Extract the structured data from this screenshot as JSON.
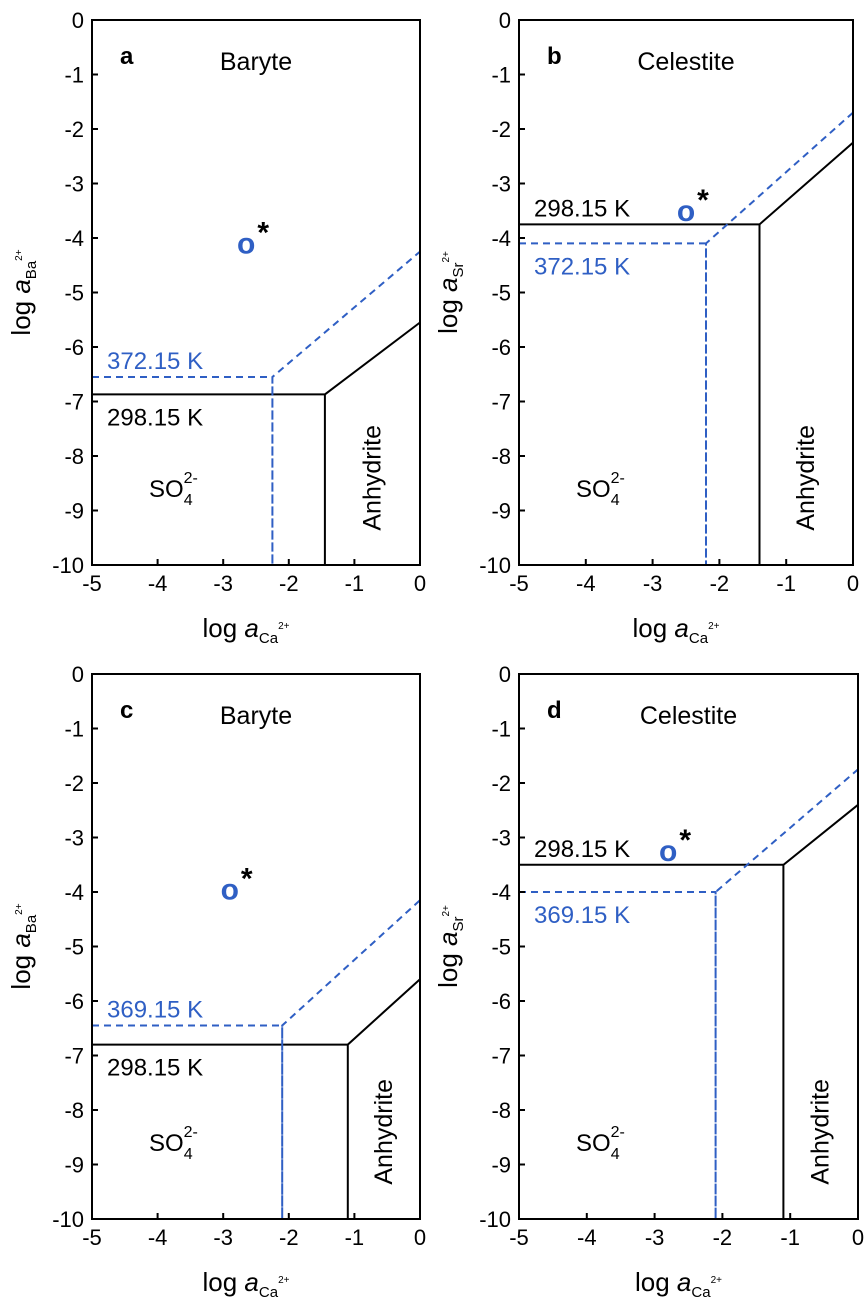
{
  "figure": {
    "colors": {
      "axis": "#000000",
      "low_temp_line": "#000000",
      "high_temp_line": "#2f5fc4",
      "marker": "#2f5fc4"
    }
  },
  "chart_data": [
    {
      "panel": "a",
      "type": "line",
      "field_label": "Baryte",
      "region_label": "Anhydrite",
      "ion_label": {
        "base": "SO",
        "sub": "4",
        "sup": "2-"
      },
      "xlabel": {
        "text": "log ",
        "italic": "a",
        "sub": "Ca",
        "sup": "2+"
      },
      "ylabel": {
        "text": "log ",
        "italic": "a",
        "sub": "Ba",
        "sup": "2+"
      },
      "xlim": [
        -5,
        0
      ],
      "ylim": [
        -10,
        0
      ],
      "x_ticks": [
        -5,
        -4,
        -3,
        -2,
        -1,
        0
      ],
      "y_ticks": [
        0,
        -1,
        -2,
        -3,
        -4,
        -5,
        -6,
        -7,
        -8,
        -9,
        -10
      ],
      "series": [
        {
          "name": "298.15 K",
          "style": "solid",
          "points": [
            [
              -5,
              -6.87
            ],
            [
              -1.45,
              -6.87
            ],
            [
              -1.45,
              -10
            ],
            [
              -1.45,
              -6.87
            ],
            [
              0,
              -5.55
            ]
          ]
        },
        {
          "name": "372.15 K",
          "style": "dashed",
          "points": [
            [
              -5,
              -6.55
            ],
            [
              -2.25,
              -6.55
            ],
            [
              -2.25,
              -10
            ],
            [
              -2.25,
              -6.55
            ],
            [
              0,
              -4.25
            ]
          ]
        }
      ],
      "marker": {
        "x": -2.65,
        "y": -4.1,
        "symbol": "o",
        "note": "*"
      }
    },
    {
      "panel": "b",
      "type": "line",
      "field_label": "Celestite",
      "region_label": "Anhydrite",
      "ion_label": {
        "base": "SO",
        "sub": "4",
        "sup": "2-"
      },
      "xlabel": {
        "text": "log ",
        "italic": "a",
        "sub": "Ca",
        "sup": "2+"
      },
      "ylabel": {
        "text": "log ",
        "italic": "a",
        "sub": "Sr",
        "sup": "2+"
      },
      "xlim": [
        -5,
        0
      ],
      "ylim": [
        -10,
        0
      ],
      "x_ticks": [
        -5,
        -4,
        -3,
        -2,
        -1,
        0
      ],
      "y_ticks": [
        0,
        -1,
        -2,
        -3,
        -4,
        -5,
        -6,
        -7,
        -8,
        -9,
        -10
      ],
      "series": [
        {
          "name": "298.15 K",
          "style": "solid",
          "points": [
            [
              -5,
              -3.75
            ],
            [
              -1.4,
              -3.75
            ],
            [
              -1.4,
              -10
            ],
            [
              -1.4,
              -3.75
            ],
            [
              0,
              -2.25
            ]
          ]
        },
        {
          "name": "372.15 K",
          "style": "dashed",
          "points": [
            [
              -5,
              -4.1
            ],
            [
              -2.2,
              -4.1
            ],
            [
              -2.2,
              -10
            ],
            [
              -2.2,
              -4.1
            ],
            [
              0,
              -1.7
            ]
          ]
        }
      ],
      "marker": {
        "x": -2.5,
        "y": -3.5,
        "symbol": "o",
        "note": "*"
      }
    },
    {
      "panel": "c",
      "type": "line",
      "field_label": "Baryte",
      "region_label": "Anhydrite",
      "ion_label": {
        "base": "SO",
        "sub": "4",
        "sup": "2-"
      },
      "xlabel": {
        "text": "log ",
        "italic": "a",
        "sub": "Ca",
        "sup": "2+"
      },
      "ylabel": {
        "text": "log ",
        "italic": "a",
        "sub": "Ba",
        "sup": "2+"
      },
      "xlim": [
        -5,
        0
      ],
      "ylim": [
        -10,
        0
      ],
      "x_ticks": [
        -5,
        -4,
        -3,
        -2,
        -1,
        0
      ],
      "y_ticks": [
        0,
        -1,
        -2,
        -3,
        -4,
        -5,
        -6,
        -7,
        -8,
        -9,
        -10
      ],
      "series": [
        {
          "name": "298.15 K",
          "style": "solid",
          "points": [
            [
              -5,
              -6.8
            ],
            [
              -1.1,
              -6.8
            ],
            [
              -1.1,
              -10
            ],
            [
              -1.1,
              -6.8
            ],
            [
              0,
              -5.6
            ]
          ]
        },
        {
          "name": "369.15 K",
          "style": "dashed",
          "points": [
            [
              -5,
              -6.45
            ],
            [
              -2.1,
              -6.45
            ],
            [
              -2.1,
              -10
            ],
            [
              -2.1,
              -6.45
            ],
            [
              0,
              -4.15
            ]
          ]
        }
      ],
      "marker": {
        "x": -2.9,
        "y": -3.95,
        "symbol": "o",
        "note": "*"
      }
    },
    {
      "panel": "d",
      "type": "line",
      "field_label": "Celestite",
      "region_label": "Anhydrite",
      "ion_label": {
        "base": "SO",
        "sub": "4",
        "sup": "2-"
      },
      "xlabel": {
        "text": "log ",
        "italic": "a",
        "sub": "Ca",
        "sup": "2+"
      },
      "ylabel": {
        "text": "log ",
        "italic": "a",
        "sub": "Sr",
        "sup": "2+"
      },
      "xlim": [
        -5,
        0
      ],
      "ylim": [
        -10,
        0
      ],
      "x_ticks": [
        -5,
        -4,
        -3,
        -2,
        -1,
        0
      ],
      "y_ticks": [
        0,
        -1,
        -2,
        -3,
        -4,
        -5,
        -6,
        -7,
        -8,
        -9,
        -10
      ],
      "series": [
        {
          "name": "298.15 K",
          "style": "solid",
          "points": [
            [
              -5,
              -3.5
            ],
            [
              -1.1,
              -3.5
            ],
            [
              -1.1,
              -10
            ],
            [
              -1.1,
              -3.5
            ],
            [
              0,
              -2.4
            ]
          ]
        },
        {
          "name": "369.15 K",
          "style": "dashed",
          "points": [
            [
              -5,
              -4.0
            ],
            [
              -2.1,
              -4.0
            ],
            [
              -2.1,
              -10
            ],
            [
              -2.1,
              -4.0
            ],
            [
              0,
              -1.75
            ]
          ]
        }
      ],
      "marker": {
        "x": -2.8,
        "y": -3.25,
        "symbol": "o",
        "note": "*"
      }
    }
  ]
}
